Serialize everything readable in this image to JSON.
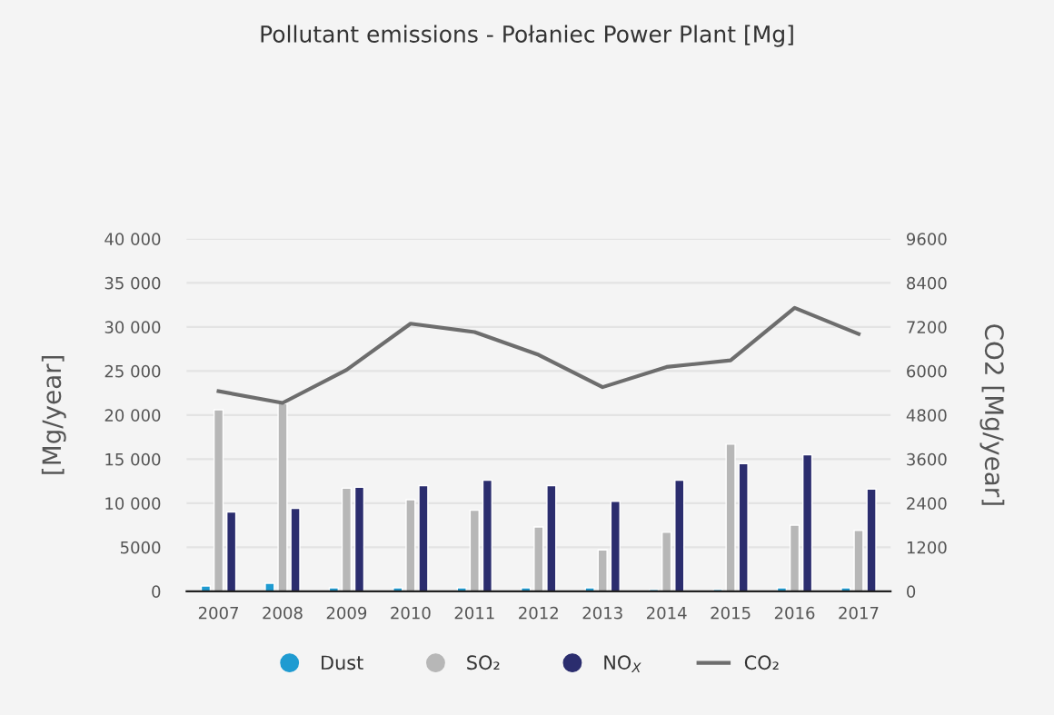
{
  "chart_data": {
    "type": "bar",
    "title": "Pollutant emissions - Połaniec Power Plant [Mg]",
    "ylabel": "[Mg/year]",
    "y2label": "CO2 [Mg/year]",
    "categories": [
      "2007",
      "2008",
      "2009",
      "2010",
      "2011",
      "2012",
      "2013",
      "2014",
      "2015",
      "2016",
      "2017"
    ],
    "series": [
      {
        "name": "Dust",
        "color": "#1f9bd1",
        "values": [
          600,
          900,
          400,
          400,
          400,
          400,
          400,
          200,
          200,
          400,
          400
        ]
      },
      {
        "name": "SO₂",
        "color": "#b7b7b7",
        "values": [
          20600,
          21300,
          11700,
          10400,
          9200,
          7300,
          4700,
          6700,
          16700,
          7500,
          6900
        ]
      },
      {
        "name": "NO$_{X}$",
        "color": "#2b2d6e",
        "values": [
          9000,
          9400,
          11800,
          12000,
          12600,
          12000,
          10200,
          12600,
          14500,
          15500,
          11600
        ]
      },
      {
        "name": "CO₂",
        "type": "line",
        "axis": "y2",
        "color": "#6d6d6d",
        "values": [
          5450,
          5130,
          6030,
          7290,
          7060,
          6440,
          5560,
          6110,
          6290,
          7720,
          7010
        ]
      }
    ],
    "ylim": [
      0,
      40000
    ],
    "yticks": [
      0,
      {
        "value": 5000,
        "label": "5000"
      },
      {
        "value": 10000,
        "label": "10 000"
      },
      {
        "value": 15000,
        "label": "15 000"
      },
      {
        "value": 20000,
        "label": "20 000"
      },
      {
        "value": 25000,
        "label": "25 000"
      },
      {
        "value": 30000,
        "label": "30 000"
      },
      {
        "value": 35000,
        "label": "35 000"
      },
      {
        "value": 40000,
        "label": "40 000"
      }
    ],
    "y2lim": [
      0,
      9600
    ],
    "y2ticks": [
      0,
      1200,
      2400,
      3600,
      4800,
      6000,
      7200,
      8400,
      9600
    ],
    "grid": "y",
    "legend": "bottom",
    "marker": "none",
    "line_style": "solid"
  }
}
